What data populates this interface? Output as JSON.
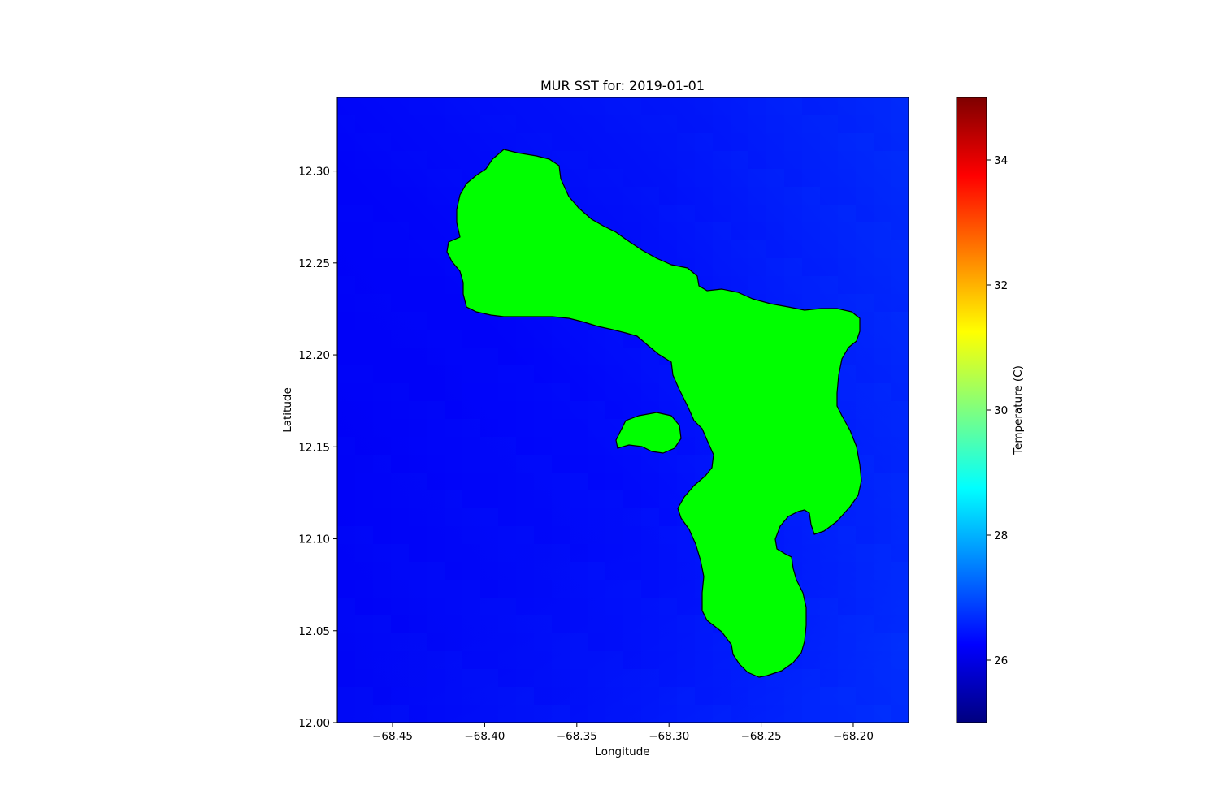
{
  "chart_data": {
    "type": "heatmap",
    "title": "MUR SST for: 2019-01-01",
    "xlabel": "Longitude",
    "ylabel": "Latitude",
    "xlim": [
      -68.48,
      -68.17
    ],
    "ylim": [
      12.0,
      12.34
    ],
    "x_ticks": [
      -68.45,
      -68.4,
      -68.35,
      -68.3,
      -68.25,
      -68.2
    ],
    "x_tick_labels": [
      "−68.45",
      "−68.40",
      "−68.35",
      "−68.30",
      "−68.25",
      "−68.20"
    ],
    "y_ticks": [
      12.0,
      12.05,
      12.1,
      12.15,
      12.2,
      12.25,
      12.3
    ],
    "y_tick_labels": [
      "12.00",
      "12.05",
      "12.10",
      "12.15",
      "12.20",
      "12.25",
      "12.30"
    ],
    "grid": false,
    "colorbar": {
      "label": "Temperature (C)",
      "range": [
        25,
        35
      ],
      "ticks": [
        26,
        28,
        30,
        32,
        34
      ],
      "tick_labels": [
        "26",
        "28",
        "30",
        "32",
        "34"
      ],
      "colormap": "jet",
      "colormap_stops": [
        "#00007f",
        "#0000ff",
        "#007fff",
        "#00ffff",
        "#7fff7f",
        "#ffff00",
        "#ff7f00",
        "#ff0000",
        "#7f0000"
      ]
    },
    "sst_field": {
      "min_temperature": 26.0,
      "max_temperature": 26.6
    },
    "land_color": "#00ff00",
    "coastline_color": "#000000",
    "ocean_colors": {
      "coolest": "#0000f4",
      "warmest": "#0048ff"
    }
  }
}
